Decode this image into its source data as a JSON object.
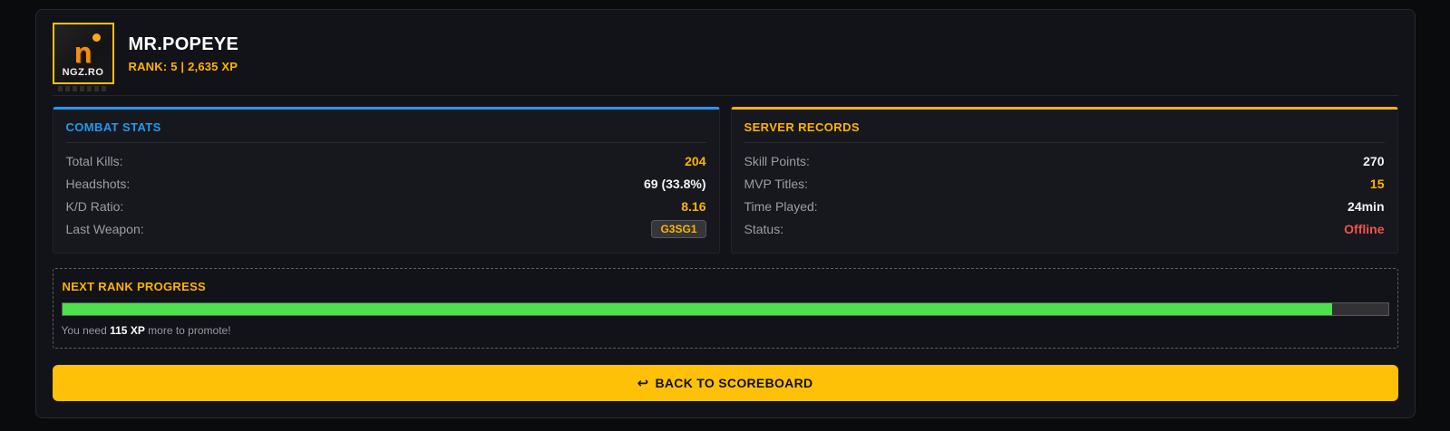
{
  "header": {
    "player_name": "MR.POPEYE",
    "rank_line": "RANK: 5 | 2,635 XP",
    "logo": {
      "glyph": "n",
      "label": "NGZ.RO"
    }
  },
  "panels": {
    "combat": {
      "title": "COMBAT STATS",
      "accent": "#1e9bf0",
      "rows": [
        {
          "label": "Total Kills:",
          "value": "204"
        },
        {
          "label": "Headshots:",
          "value": "69 (33.8%)"
        },
        {
          "label": "K/D Ratio:",
          "value": "8.16"
        },
        {
          "label": "Last Weapon:",
          "value": "G3SG1"
        }
      ]
    },
    "records": {
      "title": "SERVER RECORDS",
      "accent": "#ffb300",
      "rows": [
        {
          "label": "Skill Points:",
          "value": "270"
        },
        {
          "label": "MVP Titles:",
          "value": "15"
        },
        {
          "label": "Time Played:",
          "value": "24min"
        },
        {
          "label": "Status:",
          "value": "Offline"
        }
      ]
    }
  },
  "progress": {
    "title": "NEXT RANK PROGRESS",
    "percent": 95.8,
    "bar_color": "#4ce24c",
    "note": {
      "prefix": "You need ",
      "strong": "115 XP",
      "suffix": " more to promote!"
    }
  },
  "footer": {
    "back_button": {
      "icon": "↩",
      "label": "BACK TO SCOREBOARD"
    }
  },
  "colors": {
    "page_bg": "#0a0b0d",
    "card_bg": "#121318",
    "value_orange": "#ffb300",
    "status_offline_red": "#ef5350",
    "progress_green": "#4ce24c",
    "button_yellow": "#ffc107",
    "combat_accent_blue": "#1e9bf0"
  }
}
